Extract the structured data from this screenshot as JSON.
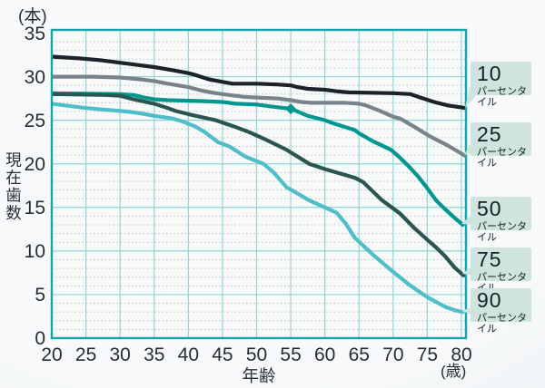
{
  "figure": {
    "y_unit_label": "(本)",
    "y_axis_title": "現在歯数",
    "x_axis_title": "年齢",
    "x_unit_label": "(歳)"
  },
  "legend": {
    "suffix": "パーセンタイル",
    "items": [
      {
        "value": "10"
      },
      {
        "value": "25"
      },
      {
        "value": "50"
      },
      {
        "value": "75"
      },
      {
        "value": "90"
      }
    ],
    "badge_bg": "#cfe4dc",
    "badge_text": "#14202a"
  },
  "chart_data": {
    "type": "line",
    "title": "",
    "xlabel": "年齢 (歳)",
    "ylabel": "現在歯数 (本)",
    "xlim": [
      20,
      80.7
    ],
    "ylim": [
      0,
      35
    ],
    "x_ticks": [
      20,
      25,
      30,
      35,
      40,
      45,
      50,
      55,
      60,
      65,
      70,
      75,
      80
    ],
    "y_ticks": [
      35,
      30,
      25,
      20,
      15,
      10,
      5,
      0
    ],
    "grid": {
      "h_solid_every": 5,
      "h_dotted_every": 1,
      "v_solid_every_years": 5,
      "solid_color": "#90d4d8",
      "dotted_color": "#a7b2ba",
      "highlight_vline_x": 55,
      "highlight_vline_color": "#a6cbe4",
      "border_color": "#17a3ac",
      "plot_bg": "#f8fafa"
    },
    "marker": {
      "series": "50パーセンタイル",
      "x": 55,
      "y": 26.3,
      "shape": "diamond",
      "color": "#029692"
    },
    "legend_position": "right",
    "series": [
      {
        "name": "10パーセンタイル",
        "color": "#1b2228",
        "points": [
          [
            20,
            32.3
          ],
          [
            24,
            32.1
          ],
          [
            27,
            31.9
          ],
          [
            30,
            31.6
          ],
          [
            33,
            31.3
          ],
          [
            35,
            31.1
          ],
          [
            38,
            30.7
          ],
          [
            40,
            30.4
          ],
          [
            41,
            30.2
          ],
          [
            43,
            29.7
          ],
          [
            45,
            29.4
          ],
          [
            46.5,
            29.2
          ],
          [
            50,
            29.2
          ],
          [
            53,
            29.1
          ],
          [
            55,
            29.0
          ],
          [
            56,
            28.8
          ],
          [
            57.5,
            28.6
          ],
          [
            60,
            28.5
          ],
          [
            62,
            28.3
          ],
          [
            63.5,
            28.2
          ],
          [
            70,
            28.1
          ],
          [
            72.5,
            28.0
          ],
          [
            74,
            27.6
          ],
          [
            76,
            27.1
          ],
          [
            78,
            26.7
          ],
          [
            80.6,
            26.4
          ]
        ]
      },
      {
        "name": "25パーセンタイル",
        "color": "#79838b",
        "points": [
          [
            20,
            30.0
          ],
          [
            26,
            30.0
          ],
          [
            30,
            29.9
          ],
          [
            33,
            29.7
          ],
          [
            35,
            29.5
          ],
          [
            37,
            29.2
          ],
          [
            40,
            28.8
          ],
          [
            42,
            28.4
          ],
          [
            44,
            28.1
          ],
          [
            46,
            27.9
          ],
          [
            48,
            27.7
          ],
          [
            50,
            27.6
          ],
          [
            53,
            27.5
          ],
          [
            55,
            27.3
          ],
          [
            56.5,
            27.1
          ],
          [
            58,
            27.0
          ],
          [
            63,
            27.0
          ],
          [
            65,
            26.9
          ],
          [
            66,
            26.7
          ],
          [
            68,
            26.1
          ],
          [
            70,
            25.4
          ],
          [
            71,
            25.2
          ],
          [
            73,
            24.3
          ],
          [
            75.5,
            23.1
          ],
          [
            78,
            22.1
          ],
          [
            80.6,
            20.9
          ]
        ]
      },
      {
        "name": "50パーセンタイル",
        "color": "#029692",
        "points": [
          [
            20,
            28.1
          ],
          [
            30,
            28.0
          ],
          [
            32,
            27.9
          ],
          [
            33.5,
            27.6
          ],
          [
            35,
            27.4
          ],
          [
            37,
            27.3
          ],
          [
            42,
            27.2
          ],
          [
            45,
            27.1
          ],
          [
            47,
            26.9
          ],
          [
            50,
            26.8
          ],
          [
            52,
            26.6
          ],
          [
            55,
            26.3
          ],
          [
            56,
            26.0
          ],
          [
            57.5,
            25.5
          ],
          [
            60,
            25.0
          ],
          [
            61,
            24.7
          ],
          [
            63,
            24.2
          ],
          [
            64.3,
            23.9
          ],
          [
            65,
            23.5
          ],
          [
            67,
            22.6
          ],
          [
            69.7,
            21.6
          ],
          [
            71,
            20.7
          ],
          [
            72.3,
            19.7
          ],
          [
            73.6,
            18.6
          ],
          [
            75,
            17.2
          ],
          [
            76.3,
            15.8
          ],
          [
            77.6,
            14.8
          ],
          [
            79,
            13.8
          ],
          [
            80.2,
            13.0
          ]
        ]
      },
      {
        "name": "75パーセンタイル",
        "color": "#2b5551",
        "points": [
          [
            20,
            28.0
          ],
          [
            28,
            27.9
          ],
          [
            30,
            27.8
          ],
          [
            32,
            27.4
          ],
          [
            35,
            26.9
          ],
          [
            37,
            26.4
          ],
          [
            38,
            26.1
          ],
          [
            40,
            25.7
          ],
          [
            41.7,
            25.4
          ],
          [
            44,
            25.0
          ],
          [
            47,
            24.2
          ],
          [
            49,
            23.6
          ],
          [
            51,
            22.9
          ],
          [
            54.4,
            21.6
          ],
          [
            57.7,
            20.0
          ],
          [
            60,
            19.4
          ],
          [
            61.7,
            19.0
          ],
          [
            64.4,
            18.4
          ],
          [
            65.6,
            17.9
          ],
          [
            68.4,
            15.8
          ],
          [
            71,
            14.3
          ],
          [
            73,
            12.7
          ],
          [
            75,
            11.3
          ],
          [
            76.3,
            10.4
          ],
          [
            77.6,
            9.4
          ],
          [
            79,
            8.1
          ],
          [
            80.3,
            7.2
          ]
        ]
      },
      {
        "name": "90パーセンタイル",
        "color": "#4fbdca",
        "points": [
          [
            20,
            26.9
          ],
          [
            23,
            26.6
          ],
          [
            25,
            26.4
          ],
          [
            28,
            26.2
          ],
          [
            31,
            26.0
          ],
          [
            33,
            25.8
          ],
          [
            35,
            25.5
          ],
          [
            37.7,
            25.2
          ],
          [
            39,
            24.9
          ],
          [
            41,
            24.3
          ],
          [
            42.5,
            23.6
          ],
          [
            44.3,
            22.5
          ],
          [
            46,
            22.0
          ],
          [
            48.4,
            20.8
          ],
          [
            51,
            20.0
          ],
          [
            52.5,
            19.0
          ],
          [
            54.4,
            17.3
          ],
          [
            56,
            16.6
          ],
          [
            57.7,
            15.8
          ],
          [
            60,
            15.0
          ],
          [
            61.7,
            14.4
          ],
          [
            63,
            13.2
          ],
          [
            64.4,
            11.5
          ],
          [
            67,
            9.6
          ],
          [
            69.7,
            7.8
          ],
          [
            72.4,
            6.1
          ],
          [
            75,
            4.7
          ],
          [
            77.6,
            3.6
          ],
          [
            79,
            3.2
          ],
          [
            80.2,
            3.0
          ]
        ]
      }
    ]
  }
}
